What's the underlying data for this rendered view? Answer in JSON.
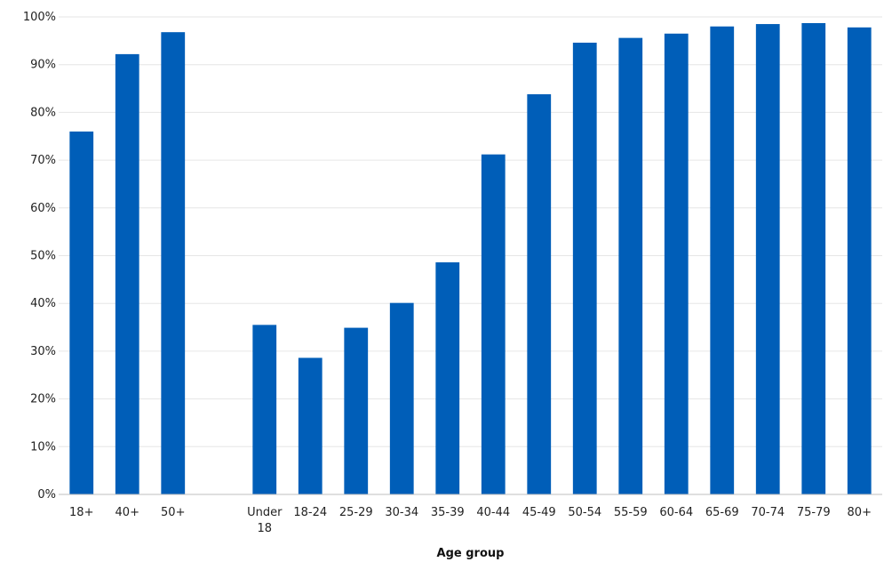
{
  "chart_data": {
    "type": "bar",
    "categories": [
      "18+",
      "40+",
      "50+",
      "",
      "Under 18",
      "18-24",
      "25-29",
      "30-34",
      "35-39",
      "40-44",
      "45-49",
      "50-54",
      "55-59",
      "60-64",
      "65-69",
      "70-74",
      "75-79",
      "80+"
    ],
    "values": [
      76,
      92.2,
      96.8,
      null,
      35.5,
      28.6,
      34.9,
      40.1,
      48.6,
      71.2,
      83.8,
      94.6,
      95.6,
      96.5,
      98,
      98.5,
      98.7,
      97.8
    ],
    "xlabel": "Age group",
    "ylabel": "",
    "ylim": [
      0,
      100
    ],
    "yticks": [
      "0%",
      "10%",
      "20%",
      "30%",
      "40%",
      "50%",
      "60%",
      "70%",
      "80%",
      "90%",
      "100%"
    ],
    "grid": true,
    "bar_color": "#005EB8"
  }
}
